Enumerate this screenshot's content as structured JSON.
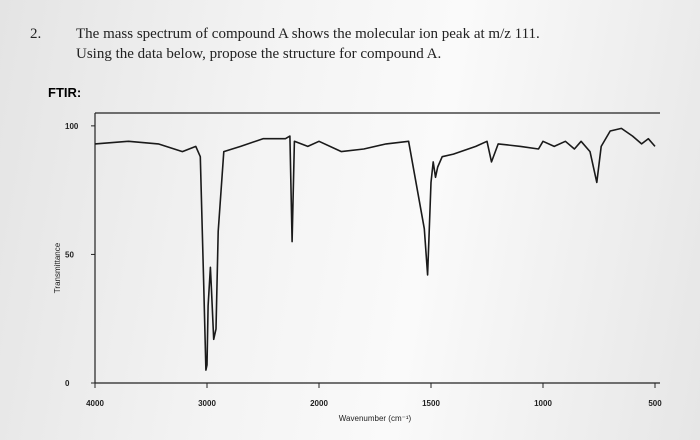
{
  "question": {
    "number": "2.",
    "line1": "The mass spectrum of compound A shows the molecular ion peak at m/z 111.",
    "line2": "Using the data below, propose the structure for compound A.",
    "section": "FTIR:"
  },
  "chart_data": {
    "type": "line",
    "x_label": "Wavenumber (cm⁻¹)",
    "y_label": "Transmittance",
    "xlim": [
      4000,
      500
    ],
    "xticks": [
      4000,
      3000,
      2000,
      1500,
      1000,
      500
    ],
    "ylim": [
      0,
      105
    ],
    "yticks": [
      0,
      50,
      100
    ],
    "series": [
      {
        "color": "#1a1a1a",
        "x": [
          4000,
          3700,
          3435,
          3220,
          3100,
          3060,
          3030,
          3010,
          3000,
          2990,
          2970,
          2960,
          2940,
          2920,
          2900,
          2850,
          2700,
          2500,
          2300,
          2260,
          2240,
          2220,
          2100,
          2000,
          1900,
          1800,
          1700,
          1600,
          1530,
          1515,
          1500,
          1490,
          1480,
          1470,
          1450,
          1400,
          1300,
          1250,
          1230,
          1200,
          1100,
          1020,
          1000,
          950,
          900,
          860,
          830,
          790,
          760,
          740,
          700,
          650,
          600,
          560,
          530,
          500
        ],
        "values": [
          93,
          94,
          93,
          90,
          92,
          88,
          40,
          5,
          7,
          30,
          45,
          36,
          17,
          21,
          59,
          90,
          92,
          95,
          95,
          96,
          55,
          94,
          92,
          94,
          90,
          91,
          93,
          94,
          60,
          42,
          78,
          86,
          80,
          84,
          88,
          89,
          92,
          94,
          86,
          93,
          92,
          91,
          94,
          92,
          94,
          91,
          94,
          90,
          78,
          92,
          98,
          99,
          96,
          93,
          95,
          92
        ]
      }
    ]
  }
}
